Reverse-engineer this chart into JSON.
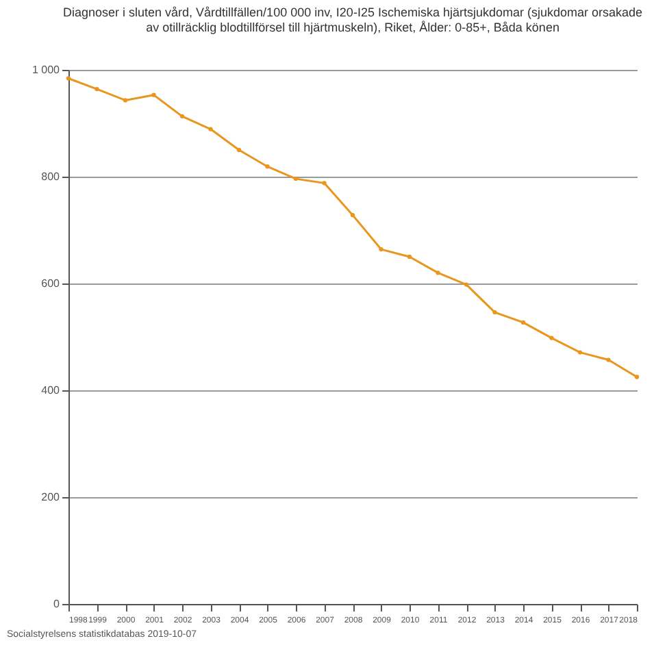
{
  "chart_data": {
    "type": "line",
    "title": "Diagnoser i sluten vård, Vårdtillfällen/100 000 inv, I20-I25 Ischemiska hjärtsjukdomar (sjukdomar orsakade av otillräcklig blodtillförsel till hjärtmuskeln), Riket, Ålder: 0-85+, Båda könen",
    "categories": [
      "1998",
      "1999",
      "2000",
      "2001",
      "2002",
      "2003",
      "2004",
      "2005",
      "2006",
      "2007",
      "2008",
      "2009",
      "2010",
      "2011",
      "2012",
      "2013",
      "2014",
      "2015",
      "2016",
      "2017",
      "2018"
    ],
    "series": [
      {
        "color": "#e8961e",
        "values": [
          984,
          964,
          943,
          953,
          913,
          889,
          850,
          819,
          796,
          788,
          728,
          664,
          650,
          620,
          598,
          546,
          527,
          498,
          471,
          457,
          425
        ]
      }
    ],
    "ylim": [
      0,
      1000
    ],
    "yticks": [
      0,
      200,
      400,
      600,
      800,
      {
        "value": 1000,
        "label": "1 000"
      }
    ],
    "grid": "y",
    "marker": "circle",
    "annotations": [
      "Socialstyrelsens statistikdatabas 2019-10-07"
    ]
  }
}
